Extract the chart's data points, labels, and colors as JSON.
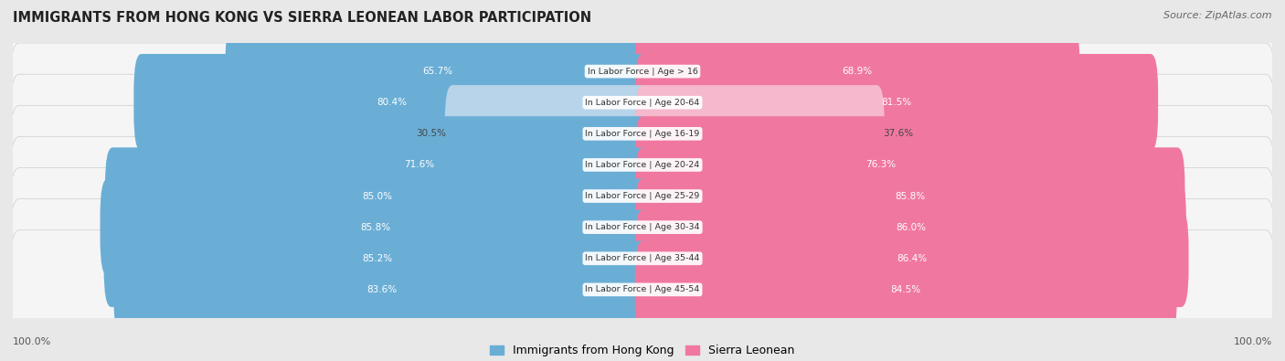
{
  "title": "IMMIGRANTS FROM HONG KONG VS SIERRA LEONEAN LABOR PARTICIPATION",
  "source": "Source: ZipAtlas.com",
  "categories": [
    "In Labor Force | Age > 16",
    "In Labor Force | Age 20-64",
    "In Labor Force | Age 16-19",
    "In Labor Force | Age 20-24",
    "In Labor Force | Age 25-29",
    "In Labor Force | Age 30-34",
    "In Labor Force | Age 35-44",
    "In Labor Force | Age 45-54"
  ],
  "hk_values": [
    65.7,
    80.4,
    30.5,
    71.6,
    85.0,
    85.8,
    85.2,
    83.6
  ],
  "sl_values": [
    68.9,
    81.5,
    37.6,
    76.3,
    85.8,
    86.0,
    86.4,
    84.5
  ],
  "hk_color": "#6aaed6",
  "sl_color": "#f078a0",
  "hk_color_light": "#b8d4ea",
  "sl_color_light": "#f5b8cc",
  "bg_color": "#e8e8e8",
  "row_bg": "#f5f5f5",
  "row_bg_alt": "#ececec",
  "legend_hk": "Immigrants from Hong Kong",
  "legend_sl": "Sierra Leonean"
}
